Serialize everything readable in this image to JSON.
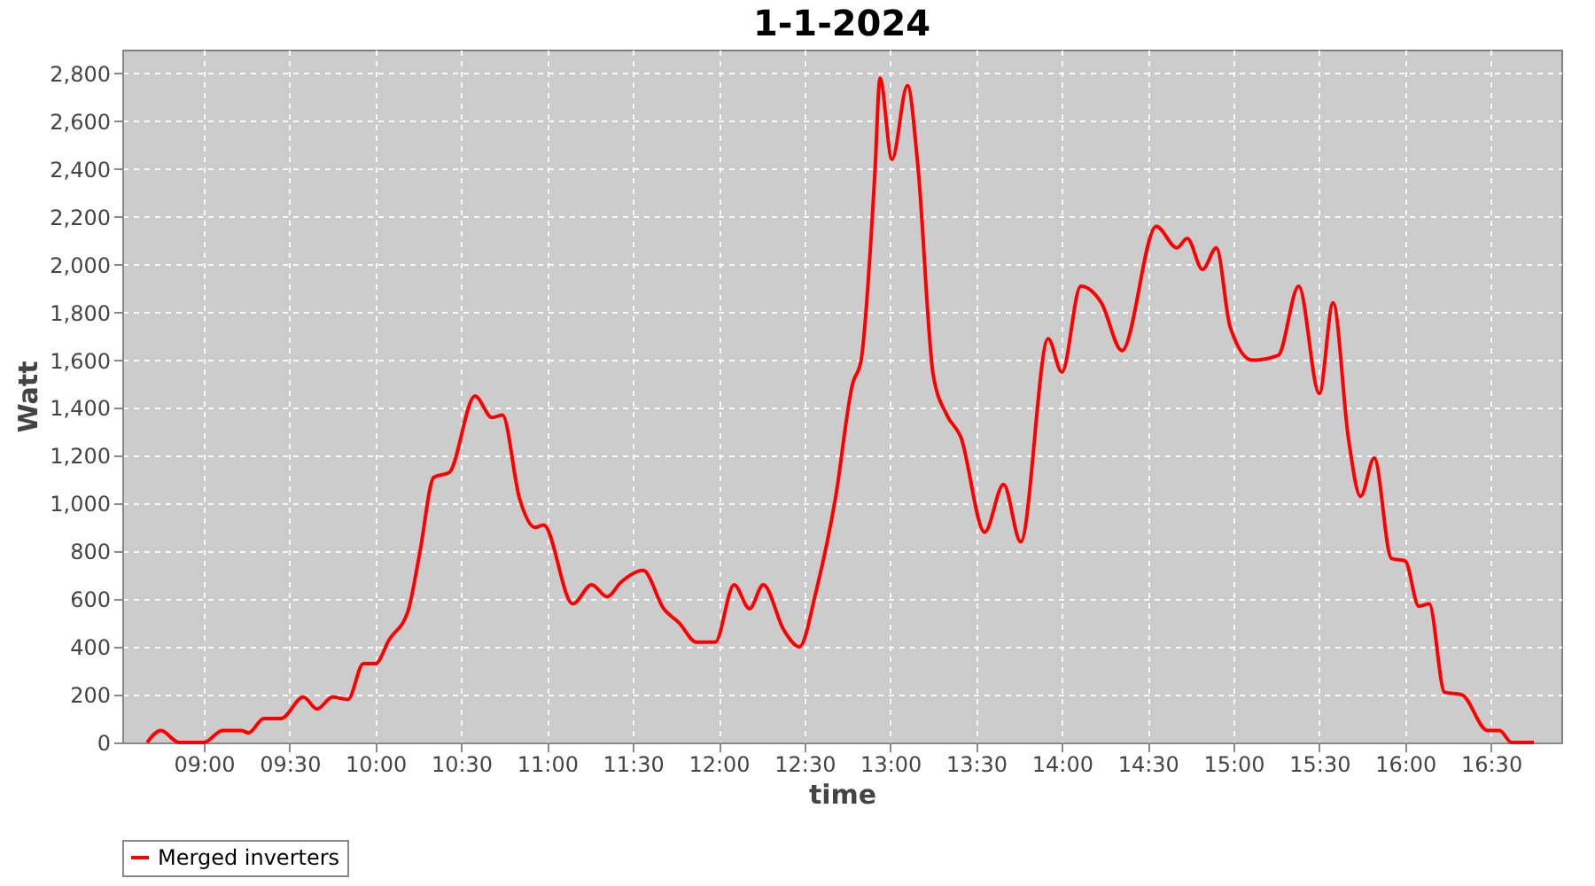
{
  "chart_data": {
    "type": "line",
    "title": "1-1-2024",
    "xlabel": "time",
    "ylabel": "Watt",
    "legend": "bottom",
    "grid": true,
    "xlim": [
      8.525,
      16.91
    ],
    "ylim": [
      0,
      2900
    ],
    "xticks": [
      {
        "value": 9,
        "label": "09:00"
      },
      {
        "value": 9.5,
        "label": "09:30"
      },
      {
        "value": 10,
        "label": "10:00"
      },
      {
        "value": 10.5,
        "label": "10:30"
      },
      {
        "value": 11,
        "label": "11:00"
      },
      {
        "value": 11.5,
        "label": "11:30"
      },
      {
        "value": 12,
        "label": "12:00"
      },
      {
        "value": 12.5,
        "label": "12:30"
      },
      {
        "value": 13,
        "label": "13:00"
      },
      {
        "value": 13.5,
        "label": "13:30"
      },
      {
        "value": 14,
        "label": "14:00"
      },
      {
        "value": 14.5,
        "label": "14:30"
      },
      {
        "value": 15,
        "label": "15:00"
      },
      {
        "value": 15.5,
        "label": "15:30"
      },
      {
        "value": 16,
        "label": "16:00"
      },
      {
        "value": 16.5,
        "label": "16:30"
      }
    ],
    "yticks": [
      0,
      200,
      400,
      600,
      800,
      {
        "value": 1000,
        "label": "1,000"
      },
      {
        "value": 1200,
        "label": "1,200"
      },
      {
        "value": 1400,
        "label": "1,400"
      },
      {
        "value": 1600,
        "label": "1,600"
      },
      {
        "value": 1800,
        "label": "1,800"
      },
      {
        "value": 2000,
        "label": "2,000"
      },
      {
        "value": 2200,
        "label": "2,200"
      },
      {
        "value": 2400,
        "label": "2,400"
      },
      {
        "value": 2600,
        "label": "2,600"
      },
      {
        "value": 2800,
        "label": "2,800"
      }
    ],
    "x": [
      8.67,
      8.75,
      8.855,
      9.0,
      9.11,
      9.22,
      9.26,
      9.35,
      9.45,
      9.58,
      9.66,
      9.75,
      9.84,
      9.93,
      10.0,
      10.08,
      10.19,
      10.26,
      10.34,
      10.43,
      10.58,
      10.68,
      10.74,
      10.84,
      10.93,
      10.98,
      11.15,
      11.26,
      11.35,
      11.43,
      11.56,
      11.68,
      11.77,
      11.87,
      11.98,
      12.09,
      12.18,
      12.26,
      12.38,
      12.47,
      12.57,
      12.68,
      12.78,
      12.83,
      12.91,
      12.94,
      13.01,
      13.1,
      13.16,
      13.25,
      13.33,
      13.41,
      13.55,
      13.66,
      13.76,
      13.92,
      14.0,
      14.11,
      14.23,
      14.35,
      14.55,
      14.67,
      14.73,
      14.82,
      14.9,
      14.98,
      15.11,
      15.26,
      15.38,
      15.5,
      15.58,
      15.67,
      15.74,
      15.82,
      15.92,
      16.0,
      16.08,
      16.14,
      16.23,
      16.33,
      16.48,
      16.55,
      16.62,
      16.75
    ],
    "series": [
      {
        "name": "Merged inverters",
        "color": "#ff0000",
        "values": [
          0,
          50,
          0,
          0,
          50,
          50,
          40,
          100,
          100,
          190,
          140,
          190,
          180,
          330,
          330,
          430,
          550,
          800,
          1110,
          1130,
          1450,
          1360,
          1370,
          1020,
          900,
          910,
          580,
          660,
          610,
          670,
          720,
          560,
          500,
          420,
          420,
          660,
          560,
          660,
          470,
          400,
          640,
          1020,
          1500,
          1600,
          2380,
          2780,
          2440,
          2750,
          2420,
          1540,
          1370,
          1280,
          880,
          1080,
          840,
          1690,
          1550,
          1910,
          1840,
          1640,
          2160,
          2070,
          2110,
          1980,
          2070,
          1740,
          1600,
          1620,
          1910,
          1460,
          1840,
          1270,
          1030,
          1190,
          770,
          760,
          570,
          580,
          210,
          200,
          50,
          50,
          0,
          0
        ]
      }
    ]
  }
}
